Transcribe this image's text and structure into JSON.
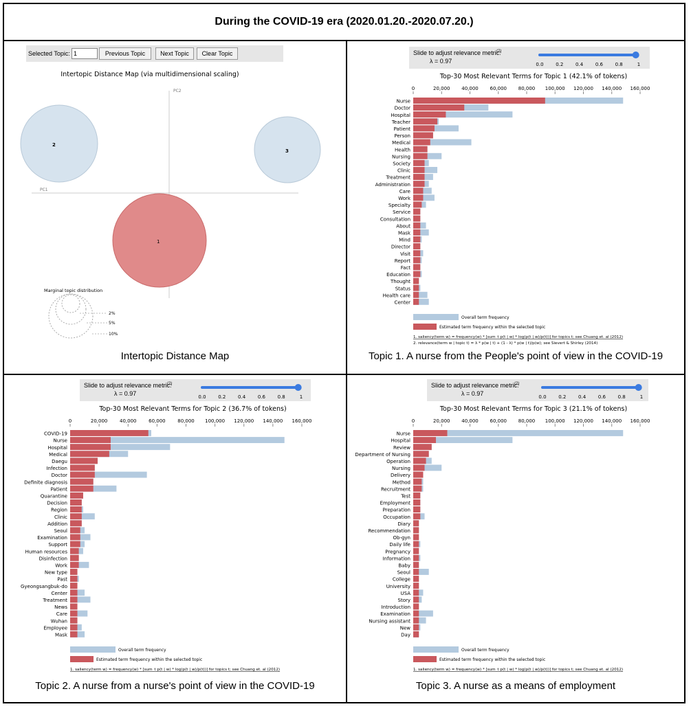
{
  "title": "During the COVID-19 era (2020.01.20.-2020.07.20.)",
  "captions": {
    "map": "Intertopic Distance Map",
    "t1": "Topic 1. A nurse from the People's point of view in the COVID-19",
    "t2": "Topic 2. A nurse from a nurse's point of view in the COVID-19",
    "t3": "Topic 3. A nurse as a means of employment"
  },
  "map": {
    "selected_label": "Selected Topic:",
    "selected_value": "1",
    "buttons": [
      "Previous Topic",
      "Next Topic",
      "Clear Topic"
    ],
    "title": "Intertopic Distance Map (via multidimensional scaling)",
    "pc1": "PC1",
    "pc2": "PC2",
    "topics": [
      "1",
      "2",
      "3"
    ],
    "marginal_title": "Marginal topic distribution",
    "marginal_labels": [
      "2%",
      "5%",
      "10%"
    ],
    "colors": {
      "selected": "#e08a8a",
      "unselected": "#d6e3ee"
    }
  },
  "slider": {
    "label": "Slide to adjust relevance metric:",
    "ref": "(2)",
    "lambda": "λ = 0.97",
    "value": 0.97,
    "ticks": [
      "0.0",
      "0.2",
      "0.4",
      "0.6",
      "0.8",
      "1"
    ]
  },
  "legend": {
    "overall": "Overall term frequency",
    "estimated": "Estimated term frequency within the selected topic",
    "note1": "1. saliency(term w) = frequency(w) * [sum_t p(t | w) * log(p(t | w)/p(t))] for topics t; see Chuang et. al (2012)",
    "note2": "2. relevance(term w | topic t) = λ * p(w | t) + (1 - λ) * p(w | t)/p(w); see Sievert & Shirley (2014)"
  },
  "colors": {
    "overall": "#b3cadf",
    "estimated": "#c9585d"
  },
  "chart_data": [
    {
      "type": "bar",
      "title": "Top-30 Most Relevant Terms for Topic 1 (42.1% of tokens)",
      "axis_ticks": [
        "0",
        "20,000",
        "40,000",
        "60,000",
        "80,000",
        "100,000",
        "120,000",
        "140,000",
        "160,000"
      ],
      "xlim": [
        0,
        160000
      ],
      "categories": [
        "Nurse",
        "Doctor",
        "Hospital",
        "Teacher",
        "Patient",
        "Person",
        "Medical",
        "Health",
        "Nursing",
        "Society",
        "Clinic",
        "Treatment",
        "Administration",
        "Care",
        "Work",
        "Specialty",
        "Service",
        "Consultation",
        "About",
        "Mask",
        "Mind",
        "Director",
        "Visit",
        "Report",
        "Fact",
        "Education",
        "Thought",
        "Status",
        "Health care",
        "Center"
      ],
      "series": [
        {
          "name": "Overall term frequency",
          "values": [
            148000,
            53000,
            70000,
            18000,
            32000,
            14000,
            41000,
            10000,
            20000,
            11000,
            17000,
            14000,
            11000,
            13000,
            15000,
            9000,
            5000,
            5000,
            9000,
            11000,
            6000,
            5000,
            7000,
            6000,
            5000,
            6000,
            4000,
            5000,
            10000,
            11000
          ]
        },
        {
          "name": "Estimated term frequency within the selected topic",
          "values": [
            93000,
            36000,
            23000,
            17000,
            15000,
            14000,
            12000,
            10000,
            10000,
            8000,
            8000,
            8000,
            8000,
            7000,
            7000,
            6000,
            5000,
            5000,
            5000,
            5000,
            5000,
            5000,
            5000,
            5000,
            5000,
            5000,
            4000,
            4000,
            4000,
            4000
          ]
        }
      ]
    },
    {
      "type": "bar",
      "title": "Top-30 Most Relevant Terms for Topic 2 (36.7% of tokens)",
      "axis_ticks": [
        "0",
        "20,000",
        "40,000",
        "60,000",
        "80,000",
        "100,000",
        "120,000",
        "140,000",
        "160,000"
      ],
      "xlim": [
        0,
        160000
      ],
      "categories": [
        "COVID-19",
        "Nurse",
        "Hospital",
        "Medical",
        "Daegu",
        "Infection",
        "Doctor",
        "Definite diagnosis",
        "Patient",
        "Quarantine",
        "Decision",
        "Region",
        "Clinic",
        "Addition",
        "Seoul",
        "Examination",
        "Support",
        "Human resources",
        "Disinfection",
        "Work",
        "New type",
        "Past",
        "Gyeongsangbuk-do",
        "Center",
        "Treatment",
        "News",
        "Care",
        "Wuhan",
        "Employee",
        "Mask"
      ],
      "series": [
        {
          "name": "Overall term frequency",
          "values": [
            56000,
            148000,
            69000,
            40000,
            19000,
            17000,
            53000,
            16000,
            32000,
            9000,
            8000,
            9000,
            17000,
            8000,
            10000,
            14000,
            10000,
            9000,
            6000,
            13000,
            5000,
            6000,
            5000,
            10000,
            14000,
            5000,
            12000,
            5000,
            8000,
            10000
          ]
        },
        {
          "name": "Estimated term frequency within the selected topic",
          "values": [
            54000,
            28000,
            28000,
            27000,
            19000,
            17000,
            17000,
            16000,
            16000,
            9000,
            8000,
            8000,
            8000,
            8000,
            7000,
            7000,
            7000,
            6000,
            6000,
            6000,
            5000,
            5000,
            5000,
            5000,
            5000,
            5000,
            5000,
            5000,
            5000,
            5000
          ]
        }
      ]
    },
    {
      "type": "bar",
      "title": "Top-30 Most Relevant Terms for Topic 3 (21.1% of tokens)",
      "axis_ticks": [
        "0",
        "20,000",
        "40,000",
        "60,000",
        "80,000",
        "100,000",
        "120,000",
        "140,000",
        "160,000"
      ],
      "xlim": [
        0,
        160000
      ],
      "categories": [
        "Nurse",
        "Hospital",
        "Review",
        "Department of Nursing",
        "Operation",
        "Nursing",
        "Delivery",
        "Method",
        "Recruitment",
        "Test",
        "Employment",
        "Preparation",
        "Occupation",
        "Diary",
        "Recommendation",
        "Ob-gyn",
        "Daily life",
        "Pregnancy",
        "Information",
        "Baby",
        "Seoul",
        "College",
        "University",
        "USA",
        "Story",
        "Introduction",
        "Examination",
        "Nursing assistant",
        "New",
        "Day"
      ],
      "series": [
        {
          "name": "Overall term frequency",
          "values": [
            148000,
            70000,
            13000,
            11000,
            13000,
            20000,
            7000,
            7000,
            7000,
            5000,
            5000,
            5000,
            8000,
            4000,
            4000,
            4000,
            5000,
            4000,
            5000,
            4000,
            11000,
            4000,
            4000,
            7000,
            6000,
            4000,
            14000,
            9000,
            5000,
            4000
          ]
        },
        {
          "name": "Estimated term frequency within the selected topic",
          "values": [
            24000,
            16000,
            13000,
            11000,
            9000,
            8000,
            7000,
            6000,
            6000,
            5000,
            5000,
            5000,
            5000,
            4000,
            4000,
            4000,
            4000,
            4000,
            4000,
            4000,
            4000,
            4000,
            4000,
            4000,
            4000,
            4000,
            4000,
            4000,
            4000,
            4000
          ]
        }
      ]
    }
  ]
}
